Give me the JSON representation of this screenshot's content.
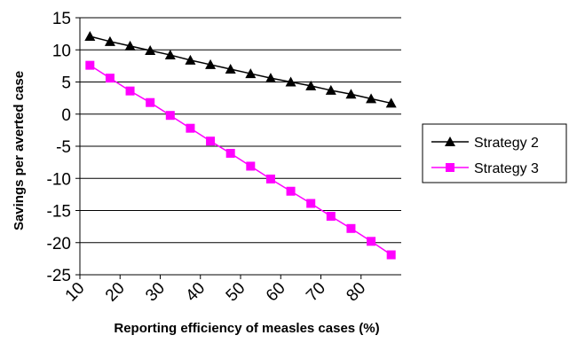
{
  "chart_data": {
    "type": "line",
    "title": "",
    "xlabel": "Reporting efficiency of measles cases (%)",
    "ylabel": "Savings per averted case",
    "xlim": [
      10,
      90
    ],
    "ylim": [
      -25,
      15
    ],
    "x_ticks": [
      10,
      20,
      30,
      40,
      50,
      60,
      70,
      80
    ],
    "y_ticks": [
      15,
      10,
      5,
      0,
      -5,
      -10,
      -15,
      -20,
      -25
    ],
    "grid": "horizontal",
    "legend_position": "right",
    "x": [
      12.5,
      17.5,
      22.5,
      27.5,
      32.5,
      37.5,
      42.5,
      47.5,
      52.5,
      57.5,
      62.5,
      67.5,
      72.5,
      77.5,
      82.5,
      87.5
    ],
    "series": [
      {
        "name": "Strategy 2",
        "marker": "triangle",
        "color": "#000000",
        "values": [
          12.1,
          11.3,
          10.6,
          9.9,
          9.2,
          8.4,
          7.7,
          7.0,
          6.3,
          5.6,
          5.0,
          4.4,
          3.7,
          3.1,
          2.4,
          1.7
        ]
      },
      {
        "name": "Strategy 3",
        "marker": "square",
        "color": "#ff00ff",
        "values": [
          7.6,
          5.6,
          3.6,
          1.8,
          -0.2,
          -2.2,
          -4.2,
          -6.1,
          -8.1,
          -10.1,
          -12.0,
          -13.9,
          -15.9,
          -17.8,
          -19.8,
          -21.9
        ]
      }
    ]
  }
}
